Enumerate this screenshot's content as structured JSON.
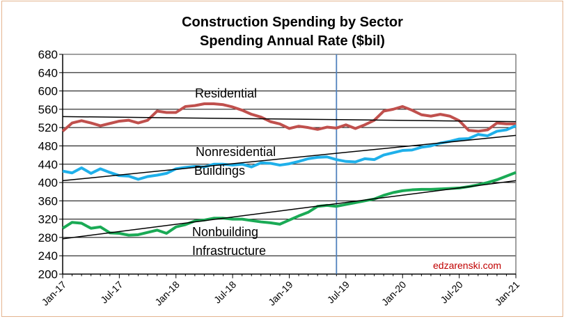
{
  "chart_data": {
    "type": "line",
    "title": "Construction Spending by Sector",
    "subtitle": "Spending Annual Rate ($bil)",
    "xlabel": "",
    "ylabel": "",
    "ylim": [
      200,
      680
    ],
    "yticks": [
      "200",
      "240",
      "280",
      "320",
      "360",
      "400",
      "440",
      "480",
      "520",
      "560",
      "600",
      "640",
      "680"
    ],
    "x_start": "Jan-17",
    "x_end": "Jan-21",
    "x_frequency": "monthly",
    "xtick_labels": [
      "Jan-17",
      "Jul-17",
      "Jan-18",
      "Jul-18",
      "Jan-19",
      "Jul-19",
      "Jan-20",
      "Jul-20",
      "Jan-21"
    ],
    "grid": "horizontal",
    "vertical_marker": "Jun-19",
    "watermark": "edzarenski.com",
    "series": [
      {
        "name": "Residential",
        "color": "#C0504D",
        "values": [
          512,
          530,
          535,
          530,
          524,
          529,
          534,
          536,
          530,
          536,
          556,
          553,
          553,
          566,
          568,
          572,
          572,
          570,
          565,
          558,
          549,
          543,
          533,
          528,
          518,
          523,
          520,
          516,
          521,
          519,
          526,
          518,
          526,
          536,
          556,
          560,
          566,
          558,
          548,
          545,
          549,
          545,
          535,
          514,
          512,
          515,
          530,
          528,
          528
        ],
        "trend": [
          544,
          533
        ]
      },
      {
        "name": "Nonresidential Buildings",
        "label_lines": [
          "Nonresidential",
          "Buildings"
        ],
        "color": "#1FB0EA",
        "values": [
          425,
          421,
          432,
          420,
          430,
          422,
          415,
          414,
          407,
          413,
          416,
          420,
          430,
          433,
          435,
          434,
          440,
          440,
          438,
          440,
          434,
          443,
          442,
          438,
          441,
          446,
          452,
          455,
          456,
          450,
          446,
          445,
          452,
          450,
          460,
          465,
          470,
          471,
          477,
          480,
          486,
          490,
          495,
          496,
          505,
          502,
          512,
          515,
          524
        ],
        "trend": [
          404,
          503
        ]
      },
      {
        "name": "Nonbuilding Infrastructure",
        "label_lines": [
          "Nonbuilding",
          "Infrastructure"
        ],
        "color": "#1AAA55",
        "values": [
          300,
          313,
          311,
          300,
          303,
          290,
          289,
          285,
          286,
          291,
          296,
          289,
          303,
          308,
          316,
          318,
          322,
          322,
          320,
          320,
          317,
          314,
          312,
          309,
          318,
          327,
          335,
          348,
          350,
          348,
          352,
          356,
          360,
          364,
          372,
          378,
          382,
          384,
          385,
          385,
          386,
          387,
          388,
          391,
          395,
          400,
          406,
          414,
          422
        ],
        "trend": [
          277,
          404
        ]
      }
    ],
    "trend_color": "#000000",
    "marker_color": "#4F81BD"
  }
}
